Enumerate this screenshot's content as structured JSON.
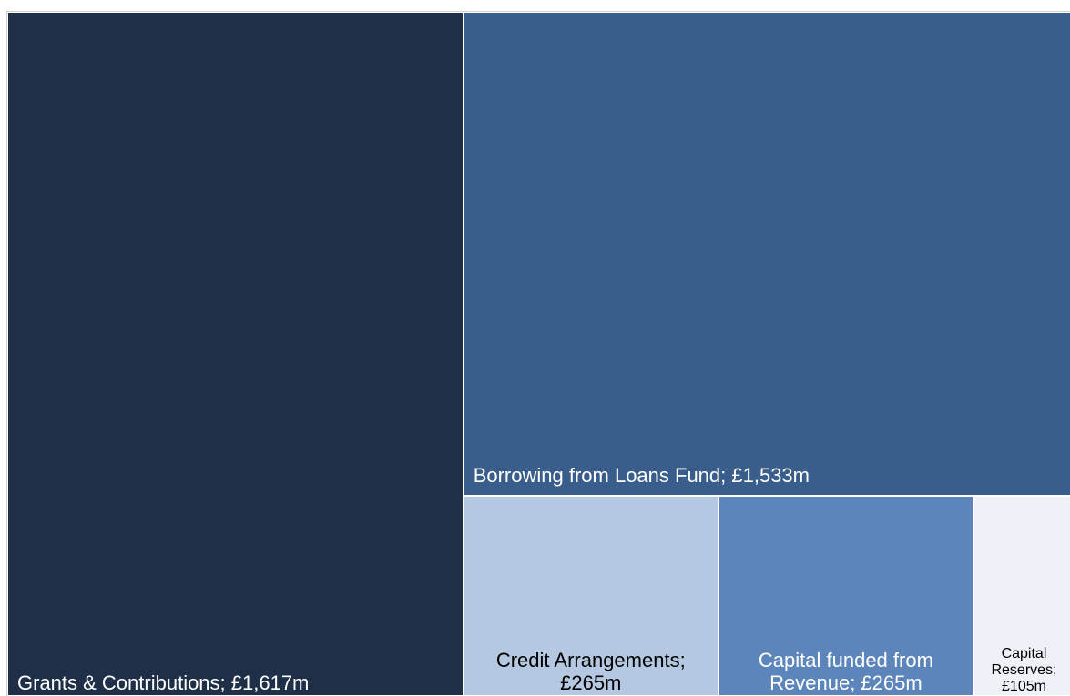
{
  "chart_data": {
    "type": "treemap",
    "labels": [
      "Grants & Contributions; £1,617m",
      "Borrowing from Loans Fund; £1,533m",
      "Credit Arrangements; £265m",
      "Capital funded from Revenue; £265m",
      "Capital Reserves; £105m"
    ],
    "values": [
      1617,
      1533,
      265,
      265,
      105
    ],
    "colors": [
      "#1e2f47",
      "#3a5e8c",
      "#b4c8e1",
      "#5b85bb",
      "#eef1f8"
    ]
  }
}
